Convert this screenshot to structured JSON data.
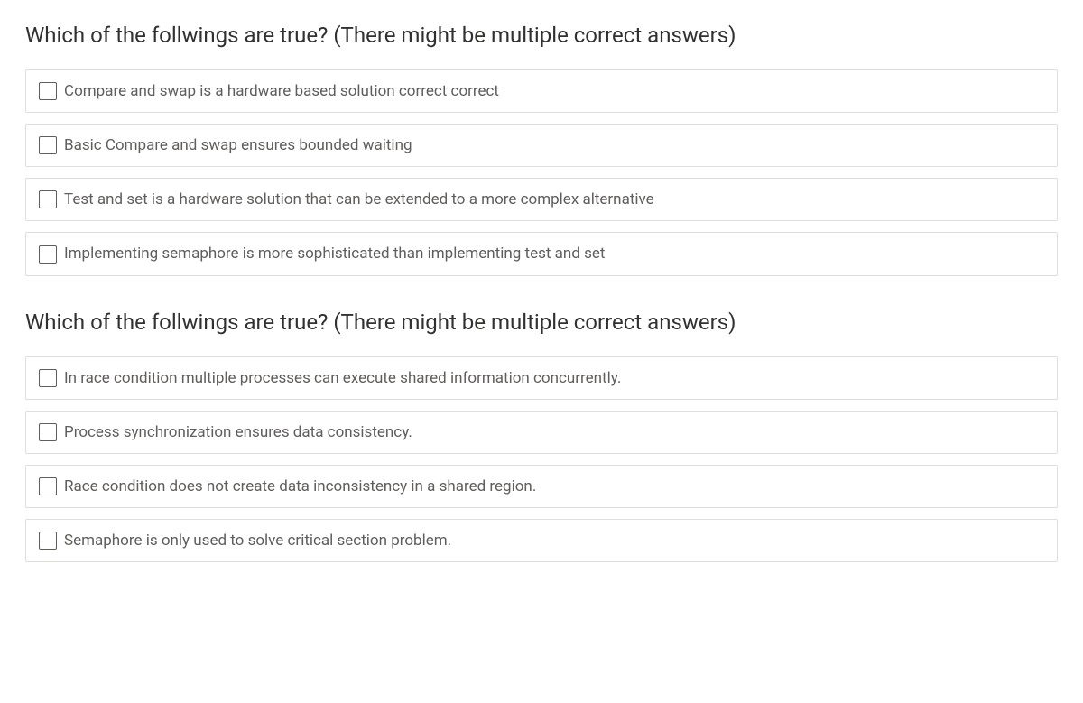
{
  "questions": [
    {
      "title": "Which of the follwings are true? (There might be multiple correct answers)",
      "options": [
        {
          "label": "Compare and swap is a hardware based solution correct correct",
          "checked": false
        },
        {
          "label": "Basic Compare and swap ensures bounded waiting",
          "checked": false
        },
        {
          "label": "Test and set is a hardware solution that can be extended to a more complex alternative",
          "checked": false
        },
        {
          "label": "Implementing semaphore is more sophisticated than implementing test and set",
          "checked": false
        }
      ]
    },
    {
      "title": "Which of the follwings are true? (There might be multiple correct answers)",
      "options": [
        {
          "label": "In race condition multiple processes can execute shared information concurrently.",
          "checked": false
        },
        {
          "label": "Process synchronization ensures data consistency.",
          "checked": false
        },
        {
          "label": "Race condition does not create data inconsistency in a shared region.",
          "checked": false
        },
        {
          "label": "Semaphore is only used to solve critical section problem.",
          "checked": false
        }
      ]
    }
  ],
  "styles": {
    "page_background": "#ffffff",
    "title_color": "#323130",
    "title_fontsize": 24,
    "option_text_color": "#605e5c",
    "option_fontsize": 17,
    "option_border_color": "#e1dfdd",
    "checkbox_border_color": "#605e5c",
    "checkbox_size": 20
  }
}
